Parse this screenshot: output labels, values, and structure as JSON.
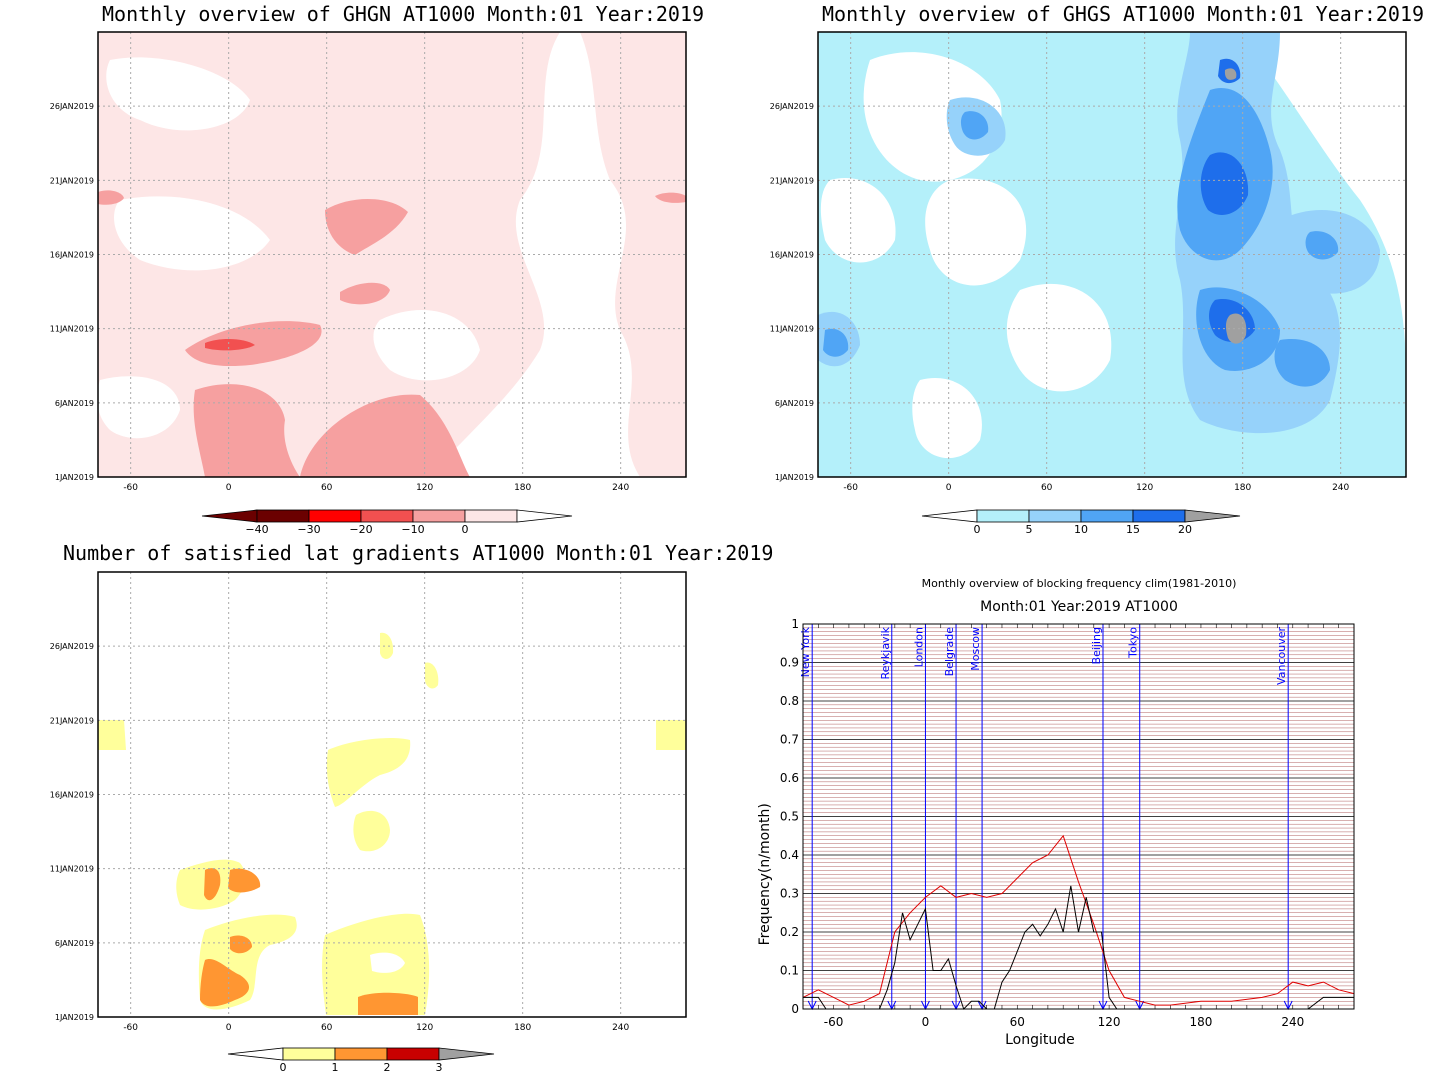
{
  "panels": {
    "ghgn": {
      "title": "Monthly overview of GHGN AT1000 Month:01 Year:2019",
      "x_ticks": [
        "-60",
        "0",
        "60",
        "120",
        "180",
        "240"
      ],
      "y_ticks": [
        "1JAN2019",
        "6JAN2019",
        "11JAN2019",
        "16JAN2019",
        "21JAN2019",
        "26JAN2019"
      ],
      "colorbar": {
        "labels": [
          "−40",
          "−30",
          "−20",
          "−10",
          "0"
        ],
        "colors": [
          "#6b0000",
          "#ff0000",
          "#f25050",
          "#f6a0a0",
          "#fde6e6"
        ]
      }
    },
    "ghgs": {
      "title": "Monthly overview of GHGS AT1000 Month:01 Year:2019",
      "x_ticks": [
        "-60",
        "0",
        "60",
        "120",
        "180",
        "240"
      ],
      "y_ticks": [
        "1JAN2019",
        "6JAN2019",
        "11JAN2019",
        "16JAN2019",
        "21JAN2019",
        "26JAN2019"
      ],
      "colorbar": {
        "labels": [
          "0",
          "5",
          "10",
          "15",
          "20"
        ],
        "colors": [
          "#b4f0fa",
          "#96d2fa",
          "#50a5f5",
          "#1e6eeb",
          "#a0a0a0"
        ]
      }
    },
    "latgrad": {
      "title": "Number of satisfied lat gradients AT1000 Month:01 Year:2019",
      "x_ticks": [
        "-60",
        "0",
        "60",
        "120",
        "180",
        "240"
      ],
      "y_ticks": [
        "1JAN2019",
        "6JAN2019",
        "11JAN2019",
        "16JAN2019",
        "21JAN2019",
        "26JAN2019"
      ],
      "colorbar": {
        "labels": [
          "0",
          "1",
          "2",
          "3"
        ],
        "colors": [
          "#ffff9b",
          "#ff9632",
          "#c80000",
          "#a0a0a0"
        ]
      }
    },
    "blocking": {
      "title": "Monthly overview of blocking frequency clim(1981-2010)",
      "subtitle": "Month:01 Year:2019  AT1000",
      "xlabel": "Longitude",
      "ylabel": "Frequency(n/month)",
      "x_ticks": [
        "-60",
        "0",
        "60",
        "120",
        "180",
        "240"
      ],
      "y_ticks": [
        "0",
        "0.1",
        "0.2",
        "0.3",
        "0.4",
        "0.5",
        "0.6",
        "0.7",
        "0.8",
        "0.9",
        "1"
      ],
      "cities": [
        {
          "name": "New York",
          "lon": -74
        },
        {
          "name": "Reykjavik",
          "lon": -22
        },
        {
          "name": "London",
          "lon": 0
        },
        {
          "name": "Belgrade",
          "lon": 20
        },
        {
          "name": "Moscow",
          "lon": 37
        },
        {
          "name": "Beijing",
          "lon": 116
        },
        {
          "name": "Tokyo",
          "lon": 140
        },
        {
          "name": "Vancouver",
          "lon": 237
        }
      ]
    }
  },
  "colors": {
    "clim_line": "#e00000",
    "obs_line": "#000000",
    "city_line": "#0000ff",
    "grid": "#b06060"
  },
  "chart_data": [
    {
      "type": "heatmap",
      "title": "Monthly overview of GHGN AT1000 Month:01 Year:2019",
      "x_range": [
        -80,
        280
      ],
      "y_range": [
        "1JAN2019",
        "31JAN2019"
      ],
      "levels": [
        -40,
        -30,
        -20,
        -10,
        0
      ]
    },
    {
      "type": "heatmap",
      "title": "Monthly overview of GHGS AT1000 Month:01 Year:2019",
      "x_range": [
        -80,
        280
      ],
      "y_range": [
        "1JAN2019",
        "31JAN2019"
      ],
      "levels": [
        0,
        5,
        10,
        15,
        20
      ]
    },
    {
      "type": "heatmap",
      "title": "Number of satisfied lat gradients AT1000 Month:01 Year:2019",
      "x_range": [
        -80,
        280
      ],
      "y_range": [
        "1JAN2019",
        "31JAN2019"
      ],
      "levels": [
        0,
        1,
        2,
        3
      ]
    },
    {
      "type": "line",
      "title": "Monthly overview of blocking frequency clim(1981-2010)",
      "xlabel": "Longitude",
      "ylabel": "Frequency(n/month)",
      "xlim": [
        -80,
        280
      ],
      "ylim": [
        0,
        1
      ],
      "series": [
        {
          "name": "",
          "color": "#e00000",
          "x": [
            -80,
            -70,
            -60,
            -50,
            -40,
            -30,
            -20,
            -10,
            0,
            10,
            20,
            30,
            40,
            50,
            60,
            70,
            80,
            90,
            100,
            110,
            120,
            130,
            140,
            150,
            160,
            180,
            200,
            220,
            230,
            240,
            250,
            260,
            270,
            280
          ],
          "y": [
            0.03,
            0.05,
            0.03,
            0.01,
            0.02,
            0.04,
            0.2,
            0.25,
            0.29,
            0.32,
            0.29,
            0.3,
            0.29,
            0.3,
            0.34,
            0.38,
            0.4,
            0.45,
            0.33,
            0.22,
            0.1,
            0.03,
            0.02,
            0.01,
            0.01,
            0.02,
            0.02,
            0.03,
            0.04,
            0.07,
            0.06,
            0.07,
            0.05,
            0.04
          ]
        },
        {
          "name": "",
          "color": "#000000",
          "x": [
            -80,
            -70,
            -65,
            -60,
            -40,
            -30,
            -25,
            -20,
            -15,
            -10,
            -5,
            0,
            5,
            10,
            15,
            20,
            25,
            30,
            35,
            40,
            45,
            50,
            55,
            60,
            65,
            70,
            75,
            80,
            85,
            90,
            95,
            100,
            105,
            110,
            115,
            120,
            125,
            130,
            240,
            250,
            260,
            270,
            280
          ],
          "y": [
            0.03,
            0.03,
            0,
            0,
            0,
            0,
            0.05,
            0.12,
            0.25,
            0.18,
            0.22,
            0.26,
            0.1,
            0.1,
            0.13,
            0.06,
            0,
            0.02,
            0.02,
            0,
            0,
            0.07,
            0.1,
            0.15,
            0.2,
            0.22,
            0.19,
            0.22,
            0.26,
            0.2,
            0.32,
            0.2,
            0.29,
            0.2,
            0.2,
            0.03,
            0,
            0,
            0,
            0,
            0.03,
            0.03,
            0.03
          ]
        }
      ]
    }
  ]
}
